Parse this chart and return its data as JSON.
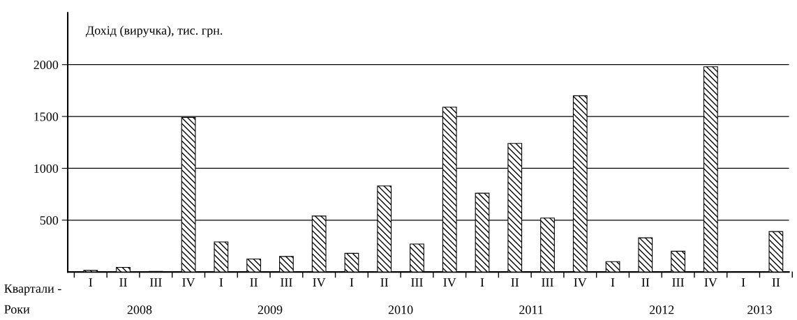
{
  "chart_data": {
    "type": "bar",
    "title": "Дохід (виручка), тис. грн.",
    "categories": [
      "I",
      "II",
      "III",
      "IV",
      "I",
      "II",
      "III",
      "IV",
      "I",
      "II",
      "III",
      "IV",
      "I",
      "II",
      "III",
      "IV",
      "I",
      "II",
      "III",
      "IV",
      "I",
      "II"
    ],
    "values": [
      15,
      45,
      5,
      1490,
      290,
      125,
      150,
      540,
      180,
      830,
      270,
      1590,
      760,
      1240,
      520,
      1700,
      100,
      330,
      200,
      1980,
      null,
      390
    ],
    "color": "#000000",
    "ylim": [
      0,
      2500
    ],
    "yticks": [
      500,
      1000,
      1500,
      2000
    ],
    "grid": "y",
    "annotations": [
      "Квартали -",
      "Роки",
      "2008",
      "2009",
      "2010",
      "2011",
      "2012",
      "2013"
    ]
  }
}
